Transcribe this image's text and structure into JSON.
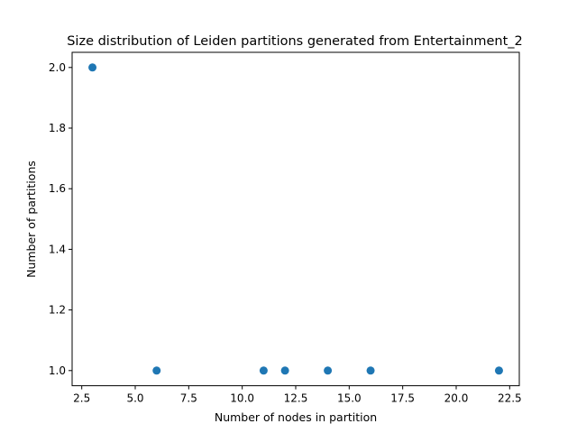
{
  "chart_data": {
    "type": "scatter",
    "title": "Size distribution of Leiden partitions generated from Entertainment_2",
    "xlabel": "Number of nodes in partition",
    "ylabel": "Number of partitions",
    "x": [
      3,
      6,
      11,
      12,
      14,
      16,
      22
    ],
    "y": [
      2,
      1,
      1,
      1,
      1,
      1,
      1
    ],
    "xlim": [
      2.05,
      22.95
    ],
    "ylim": [
      0.95,
      2.05
    ],
    "xticks": [
      2.5,
      5.0,
      7.5,
      10.0,
      12.5,
      15.0,
      17.5,
      20.0,
      22.5
    ],
    "xtick_labels": [
      "2.5",
      "5.0",
      "7.5",
      "10.0",
      "12.5",
      "15.0",
      "17.5",
      "20.0",
      "22.5"
    ],
    "yticks": [
      1.0,
      1.2,
      1.4,
      1.6,
      1.8,
      2.0
    ],
    "ytick_labels": [
      "1.0",
      "1.2",
      "1.4",
      "1.6",
      "1.8",
      "2.0"
    ],
    "grid": false,
    "marker_color": "#1f77b4"
  }
}
